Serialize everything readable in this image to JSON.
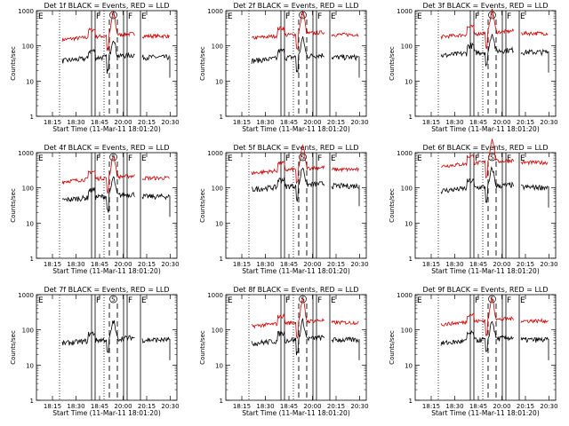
{
  "chart_data": {
    "type": "line",
    "yscale": "log",
    "ylim": [
      1,
      1000
    ],
    "xlim": [
      "18:01:20",
      "20:40:00"
    ],
    "ytick_labels": [
      "1",
      "10",
      "100",
      "1000"
    ],
    "xtick_labels": [
      "18:15",
      "18:30",
      "18:45",
      "20:00",
      "20:15",
      "20:30"
    ],
    "xlabel": "Start Time (11-Mar-11 18:01:20)",
    "ylabel": "Counts/sec",
    "colors": {
      "events": "#000000",
      "lld": "#cc0000",
      "axes": "#000000"
    },
    "markers": {
      "dotted_times": [
        "18:25",
        "18:47"
      ],
      "solid_times": [
        {
          "time": "18:48",
          "label": "E"
        },
        {
          "time": "19:51",
          "label": "F"
        },
        {
          "time": "20:05",
          "label": "F"
        },
        {
          "time": "20:20",
          "label": "E"
        }
      ],
      "dashed_times": [
        "19:54",
        "19:59"
      ],
      "peak_time": "19:56",
      "peak_label": "S",
      "left_label": "E"
    },
    "panels": [
      {
        "title": "Det 1f BLACK = Events, RED = LLD",
        "black_level": 50,
        "red_level": 200,
        "has_red": true
      },
      {
        "title": "Det 2f BLACK = Events, RED = LLD",
        "black_level": 50,
        "red_level": 220,
        "has_red": true
      },
      {
        "title": "Det 3f BLACK = Events, RED = LLD",
        "black_level": 70,
        "red_level": 240,
        "has_red": true
      },
      {
        "title": "Det 4f BLACK = Events, RED = LLD",
        "black_level": 60,
        "red_level": 200,
        "has_red": true
      },
      {
        "title": "Det 5f BLACK = Events, RED = LLD",
        "black_level": 120,
        "red_level": 350,
        "has_red": true
      },
      {
        "title": "Det 6f BLACK = Events, RED = LLD",
        "black_level": 110,
        "red_level": 550,
        "has_red": true
      },
      {
        "title": "Det 7f BLACK = Events, RED = LLD",
        "black_level": 55,
        "red_level": 0,
        "has_red": false
      },
      {
        "title": "Det 8f BLACK = Events, RED = LLD",
        "black_level": 55,
        "red_level": 170,
        "has_red": true
      },
      {
        "title": "Det 9f BLACK = Events, RED = LLD",
        "black_level": 55,
        "red_level": 190,
        "has_red": true
      }
    ]
  }
}
